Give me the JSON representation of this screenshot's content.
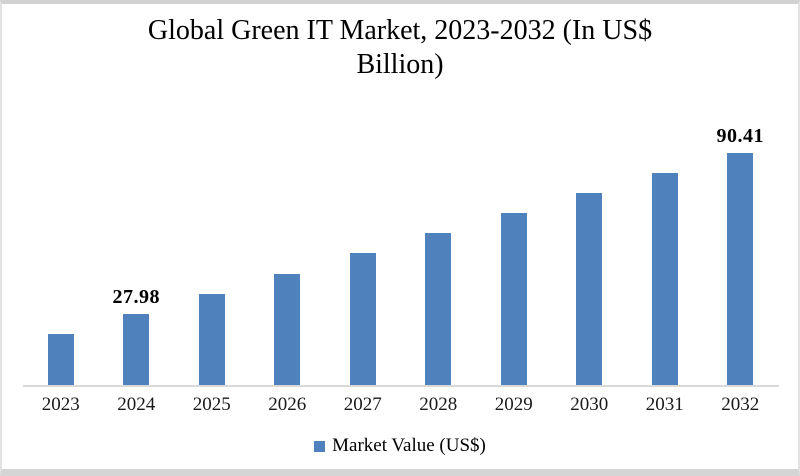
{
  "frame": {
    "background": "#ffffff",
    "border_color": "#d3d3d3"
  },
  "chart_data": {
    "type": "bar",
    "title": "Global Green IT Market, 2023-2032 (In US$ Billion)",
    "title_lines": [
      "Global Green IT Market, 2023-2032 (In US$",
      "Billion)"
    ],
    "categories": [
      "2023",
      "2024",
      "2025",
      "2026",
      "2027",
      "2028",
      "2029",
      "2030",
      "2031",
      "2032"
    ],
    "series": [
      {
        "name": "Market Value (US$)",
        "values": [
          20.18,
          27.98,
          35.78,
          43.59,
          51.39,
          59.19,
          66.99,
          74.8,
          82.6,
          90.41
        ]
      }
    ],
    "labeled_points": [
      {
        "category": "2024",
        "label": "27.98"
      },
      {
        "category": "2032",
        "label": "90.41"
      }
    ],
    "xlabel": "",
    "ylabel": "",
    "ylim": [
      0,
      100
    ],
    "grid": false,
    "legend_position": "bottom",
    "bar_color": "#4F81BD",
    "axis_line_color": "#D9D9D9"
  },
  "legend": {
    "label": "Market Value (US$)"
  }
}
